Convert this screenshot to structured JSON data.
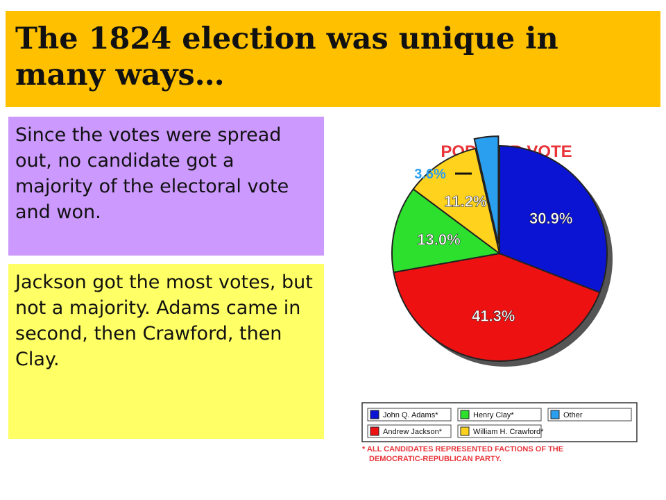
{
  "slide": {
    "title": "The 1824 election was unique in many ways…",
    "box1_text": "Since the votes were spread out, no candidate got a majority of the electoral vote and won.",
    "box2_text": "Jackson got the most votes, but not a majority. Adams came in second, then Crawford, then Clay."
  },
  "chart_data": {
    "type": "pie",
    "title": "POPULAR VOTE",
    "slices": [
      {
        "label": "John Q. Adams*",
        "value": 30.9,
        "display": "30.9%",
        "color": "#0a14d2"
      },
      {
        "label": "Andrew Jackson*",
        "value": 41.3,
        "display": "41.3%",
        "color": "#ee1111"
      },
      {
        "label": "Henry Clay*",
        "value": 13.0,
        "display": "13.0%",
        "color": "#2ee02e"
      },
      {
        "label": "William H. Crawford*",
        "value": 11.2,
        "display": "11.2%",
        "color": "#ffd21e"
      },
      {
        "label": "Other",
        "value": 3.6,
        "display": "3.6%",
        "color": "#2a9ff0"
      }
    ],
    "legend_position": "bottom",
    "footnote": "* ALL CANDIDATES REPRESENTED FACTIONS OF THE DEMOCRATIC-REPUBLICAN PARTY."
  }
}
